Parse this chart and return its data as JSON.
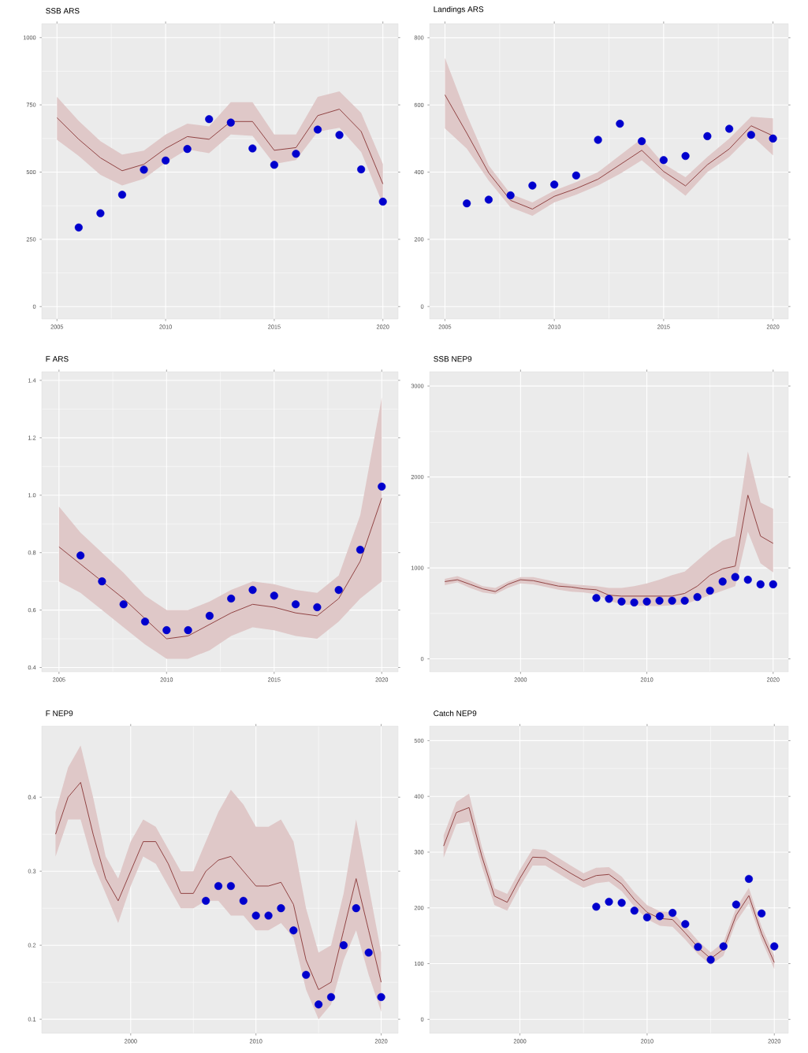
{
  "chart_data": [
    {
      "type": "line",
      "title": "SSB ARS",
      "xlim": [
        2004.3,
        2020.7
      ],
      "ylim": [
        -46,
        1052
      ],
      "xticks": [
        2005,
        2010,
        2015,
        2020
      ],
      "yticks": [
        0,
        250,
        500,
        750,
        1000
      ],
      "grid": true,
      "series": [
        {
          "type": "line",
          "color": "#8b3a3a",
          "x": [
            2005,
            2006,
            2007,
            2008,
            2009,
            2010,
            2011,
            2012,
            2013,
            2014,
            2015,
            2016,
            2017,
            2018,
            2019,
            2020
          ],
          "values": [
            702,
            622,
            553,
            505,
            529,
            588,
            632,
            622,
            688,
            688,
            581,
            591,
            710,
            734,
            651,
            456
          ],
          "lower": [
            620,
            560,
            490,
            450,
            475,
            535,
            585,
            570,
            640,
            635,
            530,
            545,
            650,
            665,
            575,
            380
          ],
          "upper": [
            780,
            690,
            615,
            565,
            580,
            640,
            680,
            670,
            760,
            760,
            640,
            640,
            780,
            800,
            720,
            530
          ]
        },
        {
          "type": "scatter",
          "color": "#0000cd",
          "marker": "circle",
          "x": [
            2006,
            2007,
            2008,
            2009,
            2010,
            2011,
            2012,
            2013,
            2014,
            2015,
            2016,
            2017,
            2018,
            2019,
            2020
          ],
          "values": [
            294,
            347,
            416,
            509,
            543,
            586,
            697,
            684,
            588,
            527,
            568,
            658,
            638,
            510,
            390
          ]
        }
      ]
    },
    {
      "type": "line",
      "title": "Landings ARS",
      "xlim": [
        2004.3,
        2020.7
      ],
      "ylim": [
        -37,
        842
      ],
      "xticks": [
        2005,
        2010,
        2015,
        2020
      ],
      "yticks": [
        0,
        200,
        400,
        600,
        800
      ],
      "grid": true,
      "series": [
        {
          "type": "line",
          "color": "#8b3a3a",
          "x": [
            2005,
            2006,
            2007,
            2008,
            2009,
            2010,
            2011,
            2012,
            2013,
            2014,
            2015,
            2016,
            2017,
            2018,
            2019,
            2020
          ],
          "values": [
            630,
            516,
            398,
            316,
            290,
            328,
            351,
            379,
            422,
            465,
            402,
            359,
            422,
            469,
            538,
            508
          ],
          "lower": [
            530,
            470,
            375,
            295,
            270,
            310,
            333,
            360,
            395,
            435,
            380,
            330,
            400,
            445,
            510,
            450
          ],
          "upper": [
            740,
            570,
            420,
            335,
            310,
            345,
            370,
            400,
            450,
            500,
            425,
            385,
            445,
            500,
            565,
            560
          ]
        },
        {
          "type": "scatter",
          "color": "#0000cd",
          "marker": "circle",
          "x": [
            2006,
            2007,
            2008,
            2009,
            2010,
            2011,
            2012,
            2013,
            2014,
            2015,
            2016,
            2017,
            2018,
            2019,
            2020
          ],
          "values": [
            307,
            318,
            331,
            360,
            363,
            390,
            496,
            544,
            492,
            436,
            448,
            507,
            529,
            511,
            500
          ]
        }
      ]
    },
    {
      "type": "line",
      "title": "F ARS",
      "xlim": [
        2004.2,
        2020.76
      ],
      "ylim": [
        0.385,
        1.43
      ],
      "xticks": [
        2005,
        2010,
        2015,
        2020
      ],
      "yticks": [
        0.4,
        0.6,
        0.8,
        {
          "value": 1,
          "label": "1.0"
        },
        1.2,
        1.4
      ],
      "grid": true,
      "series": [
        {
          "type": "line",
          "color": "#8b3a3a",
          "x": [
            2005,
            2006,
            2007,
            2008,
            2009,
            2010,
            2011,
            2012,
            2013,
            2014,
            2015,
            2016,
            2017,
            2018,
            2019,
            2020
          ],
          "values": [
            0.82,
            0.76,
            0.7,
            0.64,
            0.57,
            0.5,
            0.51,
            0.55,
            0.59,
            0.62,
            0.61,
            0.59,
            0.58,
            0.64,
            0.77,
            0.99
          ],
          "lower": [
            0.7,
            0.66,
            0.6,
            0.54,
            0.48,
            0.43,
            0.43,
            0.46,
            0.51,
            0.54,
            0.53,
            0.51,
            0.5,
            0.56,
            0.64,
            0.7
          ],
          "upper": [
            0.96,
            0.87,
            0.8,
            0.73,
            0.65,
            0.6,
            0.6,
            0.63,
            0.67,
            0.7,
            0.69,
            0.67,
            0.66,
            0.72,
            0.93,
            1.34
          ]
        },
        {
          "type": "scatter",
          "color": "#0000cd",
          "marker": "circle",
          "x": [
            2006,
            2007,
            2008,
            2009,
            2010,
            2011,
            2012,
            2013,
            2014,
            2015,
            2016,
            2017,
            2018,
            2019,
            2020
          ],
          "values": [
            0.79,
            0.7,
            0.62,
            0.56,
            0.53,
            0.53,
            0.58,
            0.64,
            0.67,
            0.65,
            0.62,
            0.61,
            0.67,
            0.81,
            1.03
          ]
        }
      ]
    },
    {
      "type": "line",
      "title": "SSB NEP9",
      "xlim": [
        1992.8,
        2021.2
      ],
      "ylim": [
        -142,
        3157
      ],
      "xticks": [
        2000,
        2010,
        2020
      ],
      "yticks": [
        0,
        1000,
        2000,
        3000
      ],
      "grid": true,
      "series": [
        {
          "type": "line",
          "color": "#8b3a3a",
          "x": [
            1994,
            1995,
            1996,
            1997,
            1998,
            1999,
            2000,
            2001,
            2002,
            2003,
            2004,
            2005,
            2006,
            2007,
            2008,
            2009,
            2010,
            2011,
            2012,
            2013,
            2014,
            2015,
            2016,
            2017,
            2018,
            2019,
            2020
          ],
          "values": [
            850,
            870,
            820,
            770,
            740,
            820,
            870,
            860,
            830,
            800,
            790,
            770,
            760,
            700,
            690,
            690,
            690,
            690,
            690,
            720,
            800,
            920,
            990,
            1020,
            1800,
            1350,
            1270
          ],
          "lower": [
            810,
            840,
            780,
            730,
            710,
            780,
            830,
            820,
            790,
            760,
            740,
            730,
            710,
            640,
            600,
            590,
            580,
            580,
            590,
            600,
            650,
            700,
            750,
            800,
            1400,
            1050,
            950
          ],
          "upper": [
            880,
            910,
            860,
            800,
            780,
            850,
            900,
            900,
            870,
            840,
            820,
            810,
            800,
            780,
            780,
            800,
            830,
            870,
            920,
            960,
            1080,
            1200,
            1300,
            1350,
            2280,
            1720,
            1650
          ]
        },
        {
          "type": "scatter",
          "color": "#0000cd",
          "marker": "circle",
          "x": [
            2006,
            2007,
            2008,
            2009,
            2010,
            2011,
            2012,
            2013,
            2014,
            2015,
            2016,
            2017,
            2018,
            2019,
            2020
          ],
          "values": [
            670,
            660,
            630,
            620,
            630,
            640,
            640,
            640,
            680,
            750,
            850,
            900,
            870,
            820,
            820
          ]
        }
      ]
    },
    {
      "type": "line",
      "title": "F NEP9",
      "xlim": [
        1992.9,
        2021.35
      ],
      "ylim": [
        0.081,
        0.496
      ],
      "xticks": [
        2000,
        2010,
        2020
      ],
      "yticks": [
        0.1,
        0.2,
        0.3,
        0.4
      ],
      "grid": true,
      "series": [
        {
          "type": "line",
          "color": "#8b3a3a",
          "x": [
            1994,
            1995,
            1996,
            1997,
            1998,
            1999,
            2000,
            2001,
            2002,
            2003,
            2004,
            2005,
            2006,
            2007,
            2008,
            2009,
            2010,
            2011,
            2012,
            2013,
            2014,
            2015,
            2016,
            2017,
            2018,
            2019,
            2020
          ],
          "values": [
            0.35,
            0.4,
            0.42,
            0.35,
            0.29,
            0.26,
            0.3,
            0.34,
            0.34,
            0.31,
            0.27,
            0.27,
            0.3,
            0.315,
            0.32,
            0.3,
            0.28,
            0.28,
            0.285,
            0.255,
            0.18,
            0.14,
            0.15,
            0.22,
            0.29,
            0.22,
            0.15
          ],
          "lower": [
            0.32,
            0.37,
            0.37,
            0.31,
            0.27,
            0.23,
            0.28,
            0.32,
            0.31,
            0.28,
            0.25,
            0.25,
            0.26,
            0.26,
            0.24,
            0.24,
            0.22,
            0.22,
            0.23,
            0.21,
            0.14,
            0.1,
            0.12,
            0.18,
            0.22,
            0.16,
            0.11
          ],
          "upper": [
            0.38,
            0.44,
            0.47,
            0.4,
            0.32,
            0.29,
            0.34,
            0.37,
            0.36,
            0.33,
            0.3,
            0.3,
            0.34,
            0.38,
            0.41,
            0.39,
            0.36,
            0.36,
            0.37,
            0.34,
            0.25,
            0.19,
            0.2,
            0.27,
            0.37,
            0.28,
            0.19
          ]
        },
        {
          "type": "scatter",
          "color": "#0000cd",
          "marker": "circle",
          "x": [
            2006,
            2007,
            2008,
            2009,
            2010,
            2011,
            2012,
            2013,
            2014,
            2015,
            2016,
            2017,
            2018,
            2019,
            2020
          ],
          "values": [
            0.26,
            0.28,
            0.28,
            0.26,
            0.24,
            0.24,
            0.25,
            0.22,
            0.16,
            0.12,
            0.13,
            0.2,
            0.25,
            0.19,
            0.13
          ]
        }
      ]
    },
    {
      "type": "line",
      "title": "Catch NEP9",
      "xlim": [
        1992.9,
        2021.1
      ],
      "ylim": [
        -25,
        526
      ],
      "xticks": [
        2000,
        2010,
        2020
      ],
      "yticks": [
        0,
        100,
        200,
        300,
        400,
        500
      ],
      "grid": true,
      "series": [
        {
          "type": "line",
          "color": "#8b3a3a",
          "x": [
            1994,
            1995,
            1996,
            1997,
            1998,
            1999,
            2000,
            2001,
            2002,
            2003,
            2004,
            2005,
            2006,
            2007,
            2008,
            2009,
            2010,
            2011,
            2012,
            2013,
            2014,
            2015,
            2016,
            2017,
            2018,
            2019,
            2020
          ],
          "values": [
            311,
            371,
            380,
            293,
            221,
            210,
            253,
            291,
            290,
            276,
            262,
            249,
            258,
            260,
            243,
            215,
            192,
            181,
            179,
            155,
            129,
            109,
            126,
            187,
            222,
            154,
            102
          ],
          "lower": [
            290,
            350,
            355,
            275,
            205,
            195,
            238,
            276,
            276,
            262,
            248,
            236,
            244,
            247,
            230,
            202,
            180,
            168,
            166,
            143,
            117,
            98,
            114,
            175,
            208,
            142,
            90
          ],
          "upper": [
            330,
            390,
            405,
            310,
            235,
            225,
            268,
            306,
            304,
            290,
            276,
            262,
            272,
            273,
            256,
            228,
            205,
            194,
            192,
            167,
            141,
            120,
            138,
            200,
            236,
            166,
            114
          ]
        },
        {
          "type": "scatter",
          "color": "#0000cd",
          "marker": "circle",
          "x": [
            2006,
            2007,
            2008,
            2009,
            2010,
            2011,
            2012,
            2013,
            2014,
            2015,
            2016,
            2017,
            2018,
            2019,
            2020
          ],
          "values": [
            202,
            211,
            209,
            195,
            183,
            185,
            191,
            171,
            130,
            107,
            131,
            206,
            252,
            190,
            131
          ]
        }
      ]
    }
  ]
}
